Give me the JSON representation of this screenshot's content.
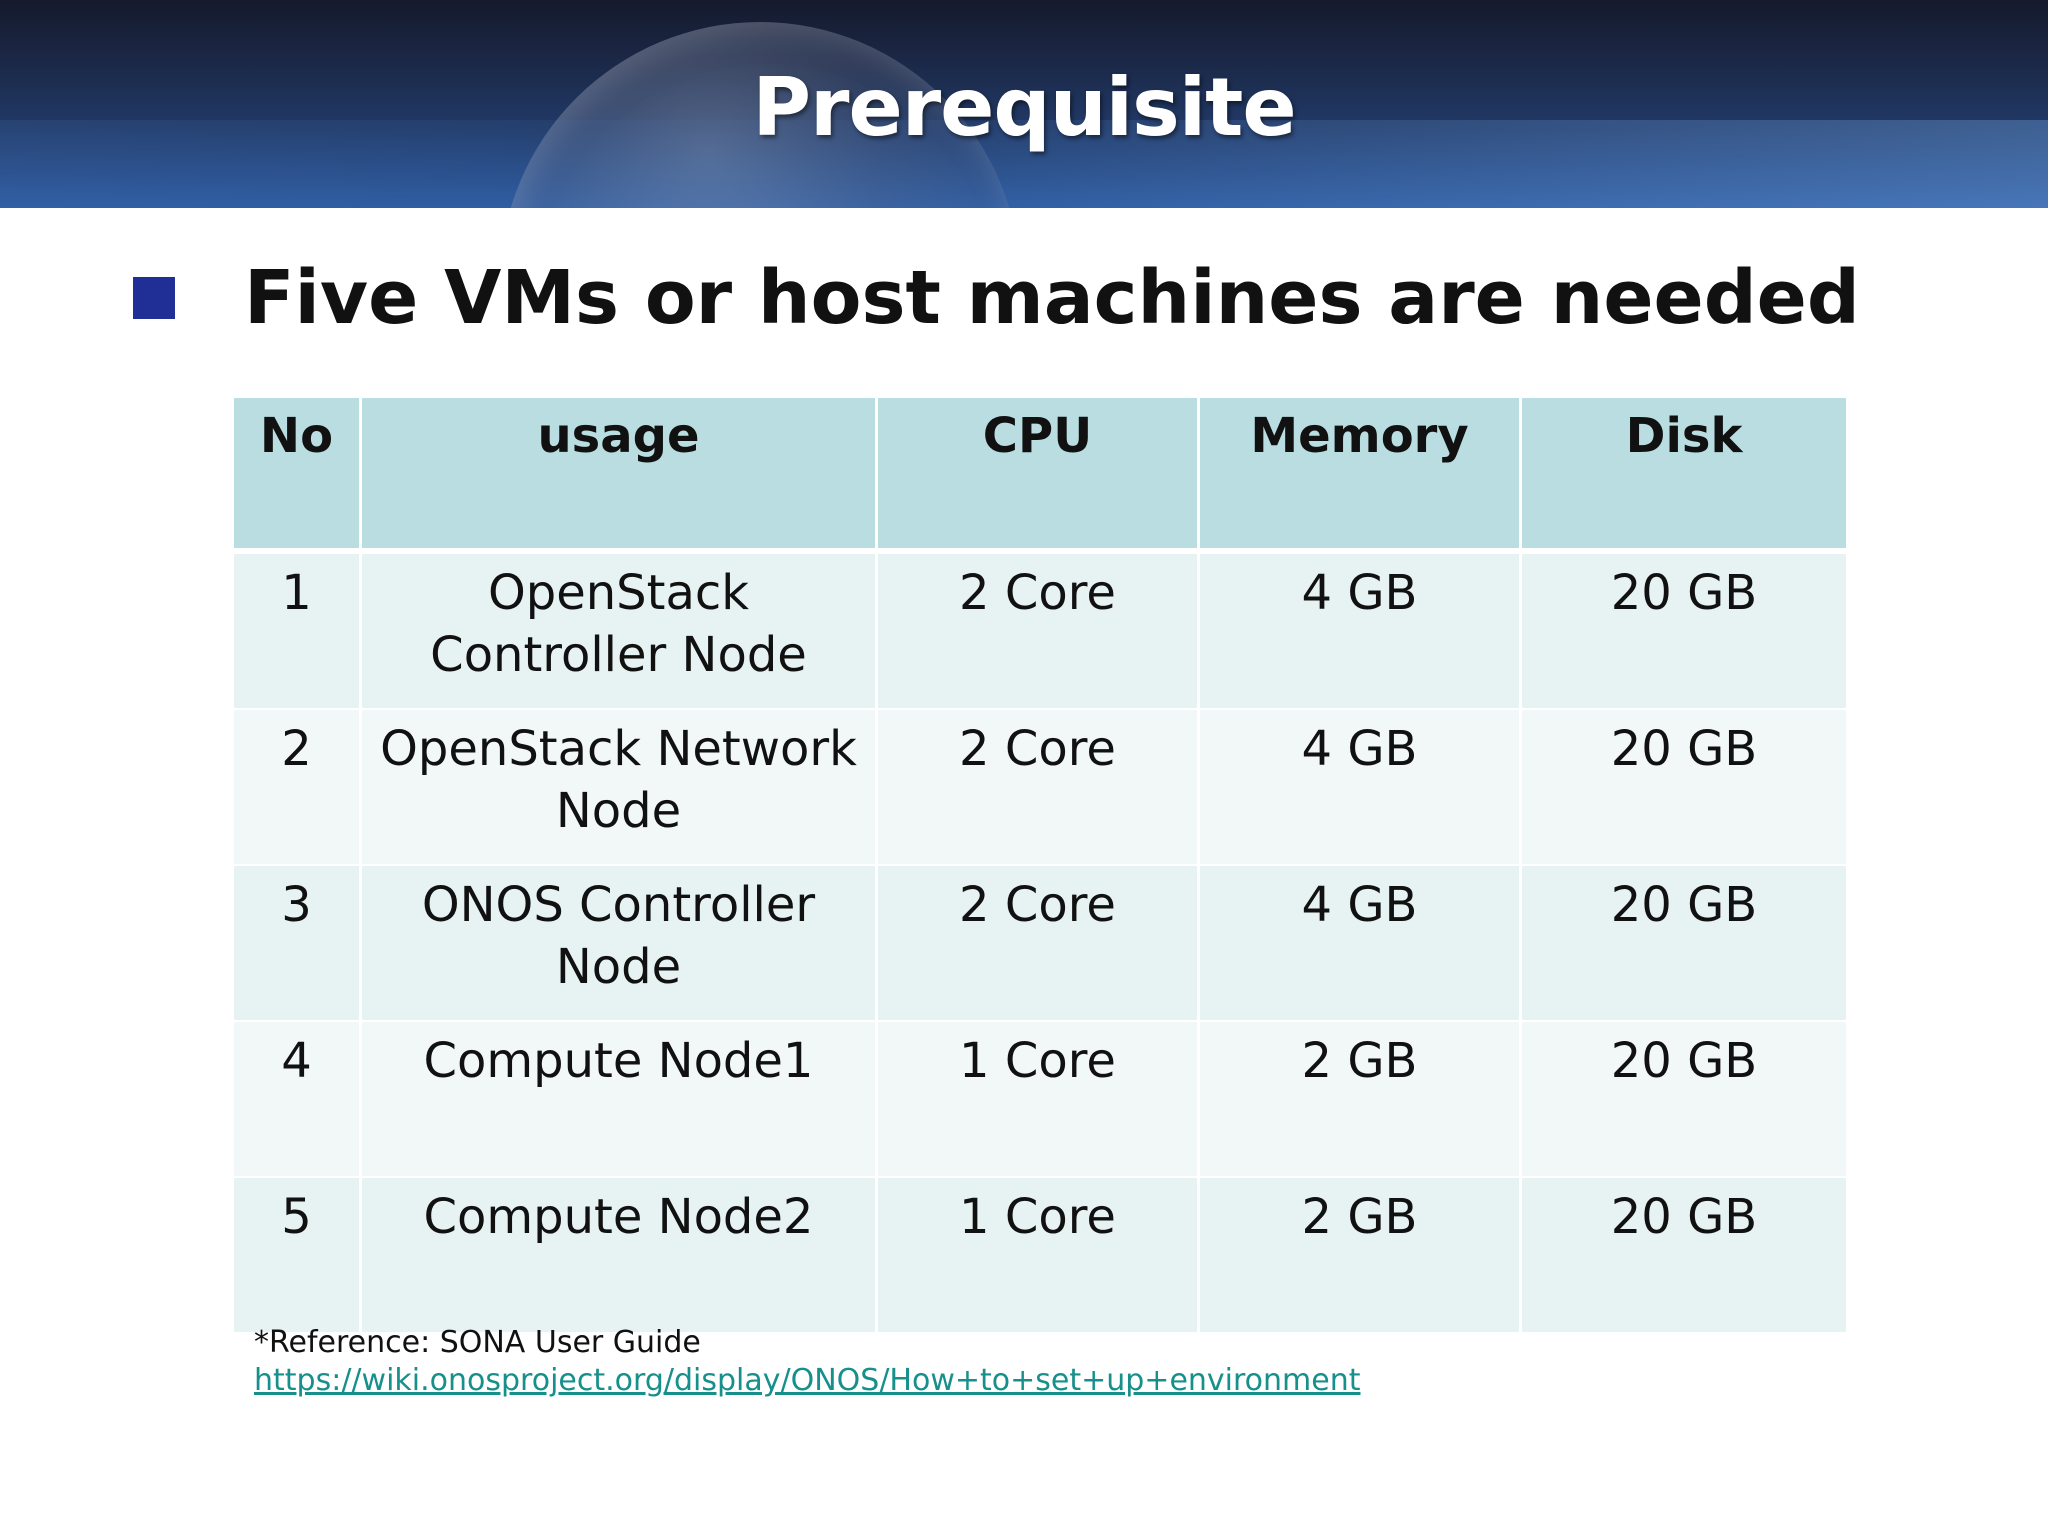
{
  "slide": {
    "title": "Prerequisite",
    "bullet": "Five VMs or host machines are needed",
    "table": {
      "headers": {
        "no": "No",
        "usage": "usage",
        "cpu": "CPU",
        "memory": "Memory",
        "disk": "Disk"
      },
      "rows": [
        {
          "no": "1",
          "usage": "OpenStack Controller Node",
          "cpu": "2 Core",
          "memory": "4 GB",
          "disk": "20 GB"
        },
        {
          "no": "2",
          "usage": "OpenStack Network Node",
          "cpu": "2 Core",
          "memory": "4 GB",
          "disk": "20 GB"
        },
        {
          "no": "3",
          "usage": "ONOS Controller Node",
          "cpu": "2 Core",
          "memory": "4 GB",
          "disk": "20 GB"
        },
        {
          "no": "4",
          "usage": "Compute Node1",
          "cpu": "1 Core",
          "memory": "2 GB",
          "disk": "20 GB"
        },
        {
          "no": "5",
          "usage": "Compute Node2",
          "cpu": "1 Core",
          "memory": "2 GB",
          "disk": "20 GB"
        }
      ]
    },
    "reference": {
      "label": "*Reference: SONA User Guide",
      "link": "https://wiki.onosproject.org/display/ONOS/How+to+set+up+environment"
    }
  },
  "colors": {
    "header_dark": "#151a2c",
    "header_light": "#2c5aa0",
    "bullet": "#1f2f96",
    "table_header": "#b9dde0",
    "table_row_odd": "#e7f2f2",
    "table_row_even": "#f2f8f8",
    "link": "#17908c"
  },
  "icons": {
    "bullet": "square-bullet-icon"
  }
}
